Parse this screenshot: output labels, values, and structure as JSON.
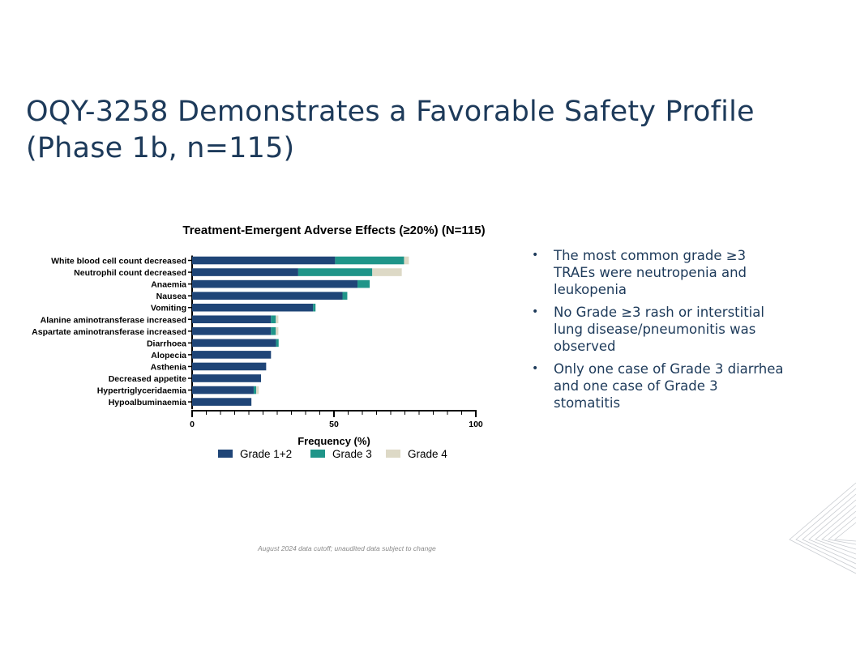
{
  "slide": {
    "title_lines": [
      "OQY-3258 Demonstrates a Favorable Safety Profile",
      "(Phase 1b, n=115)"
    ],
    "bullets": [
      "The most common grade ≥3 TRAEs were neutropenia and leukopenia",
      "No Grade ≥3 rash or interstitial lung disease/pneumonitis was observed",
      "Only one case of Grade 3 diarrhea and one case of Grade 3 stomatitis"
    ],
    "footnote": "August 2024 data cutoff; unaudited data subject to change"
  },
  "colors": {
    "title": "#1d3a5a",
    "grade12": "#1f4577",
    "grade3": "#1f9589",
    "grade4": "#ddd9c6"
  },
  "chart_data": {
    "type": "bar",
    "orientation": "horizontal",
    "stacked": true,
    "title": "Treatment-Emergent Adverse Effects (≥20%) (N=115)",
    "xlabel": "Frequency (%)",
    "ylabel": "",
    "xlim": [
      0,
      100
    ],
    "xticks": [
      0,
      50,
      100
    ],
    "legend_position": "bottom",
    "categories": [
      "White blood cell count decreased",
      "Neutrophil count decreased",
      "Anaemia",
      "Nausea",
      "Vomiting",
      "Alanine aminotransferase increased",
      "Aspartate aminotransferase increased",
      "Diarrhoea",
      "Alopecia",
      "Asthenia",
      "Decreased appetite",
      "Hypertriglyceridaemia",
      "Hypoalbuminaemia"
    ],
    "series": [
      {
        "name": "Grade 1+2",
        "color": "#1f4577",
        "values": [
          50.4,
          37.4,
          58.3,
          53.0,
          42.6,
          27.8,
          27.8,
          29.6,
          27.8,
          26.1,
          24.3,
          21.7,
          20.9
        ]
      },
      {
        "name": "Grade 3",
        "color": "#1f9589",
        "values": [
          24.3,
          26.1,
          4.3,
          1.7,
          0.9,
          1.7,
          1.7,
          0.9,
          0,
          0,
          0,
          0.9,
          0
        ]
      },
      {
        "name": "Grade 4",
        "color": "#ddd9c6",
        "values": [
          1.7,
          10.4,
          0,
          0,
          0,
          0.9,
          0.9,
          0,
          0,
          0,
          0,
          0.9,
          0
        ]
      }
    ]
  }
}
